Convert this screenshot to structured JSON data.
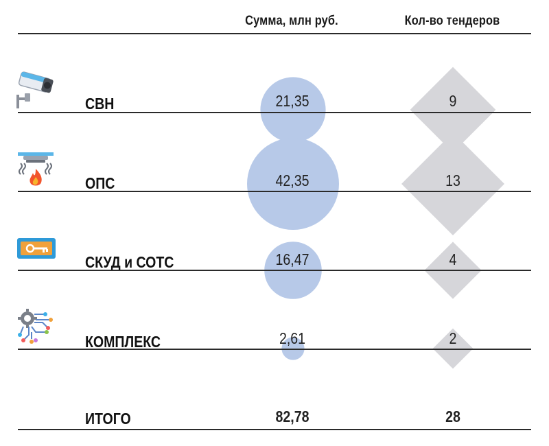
{
  "header": {
    "sum_label": "Сумма, млн руб.",
    "count_label": "Кол-во тендеров"
  },
  "rows": [
    {
      "label": "СВН",
      "sum": "21,35",
      "count": "9",
      "icon": "cctv-camera-icon"
    },
    {
      "label": "ОПС",
      "sum": "42,35",
      "count": "13",
      "icon": "fire-alarm-icon"
    },
    {
      "label": "СКУД и СОТС",
      "sum": "16,47",
      "count": "4",
      "icon": "access-card-icon"
    },
    {
      "label": "КОМПЛЕКС",
      "sum": "2,61",
      "count": "2",
      "icon": "integrated-system-icon"
    }
  ],
  "total": {
    "label": "ИТОГО",
    "sum": "82,78",
    "count": "28"
  },
  "colors": {
    "bubble": "#b7c9e8",
    "diamond": "#d6d6da",
    "rule": "#2a2a2a"
  },
  "chart_data": {
    "type": "table",
    "categories": [
      "СВН",
      "ОПС",
      "СКУД и СОТС",
      "КОМПЛЕКС"
    ],
    "series": [
      {
        "name": "Сумма, млн руб.",
        "values": [
          21.35,
          42.35,
          16.47,
          2.61
        ],
        "shape": "circle"
      },
      {
        "name": "Кол-во тендеров",
        "values": [
          9,
          13,
          4,
          2
        ],
        "shape": "diamond"
      }
    ],
    "totals": {
      "Сумма, млн руб.": 82.78,
      "Кол-во тендеров": 28
    }
  }
}
